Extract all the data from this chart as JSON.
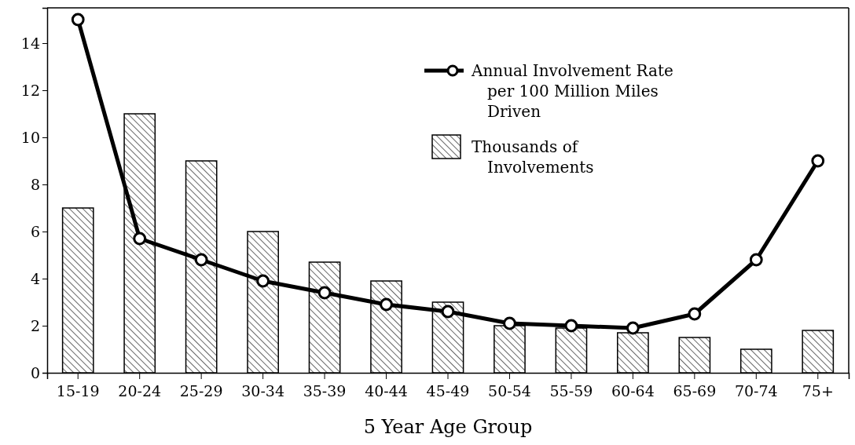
{
  "chart_data": {
    "type": "bar",
    "xlabel": "5 Year Age Group",
    "categories": [
      "15-19",
      "20-24",
      "25-29",
      "30-34",
      "35-39",
      "40-44",
      "45-49",
      "50-54",
      "55-59",
      "60-64",
      "65-69",
      "70-74",
      "75+"
    ],
    "series": [
      {
        "name": "Thousands of Involvements",
        "color": "#000000",
        "values": [
          7,
          11,
          9,
          6,
          4.7,
          3.9,
          3,
          2,
          1.9,
          1.7,
          1.5,
          1,
          1.8
        ]
      },
      {
        "name": "Annual Involvement Rate per 100 Million Miles Driven",
        "type": "line",
        "color": "#000000",
        "values": [
          15,
          5.7,
          4.8,
          3.9,
          3.4,
          2.9,
          2.6,
          2.1,
          2,
          1.9,
          2.5,
          4.8,
          9
        ]
      }
    ],
    "ylim": [
      0,
      15.5
    ],
    "yticks": [
      0,
      2,
      4,
      6,
      8,
      10,
      12,
      14
    ],
    "grid": false,
    "legend": "top right",
    "marker": "circle",
    "line_style": "solid"
  }
}
